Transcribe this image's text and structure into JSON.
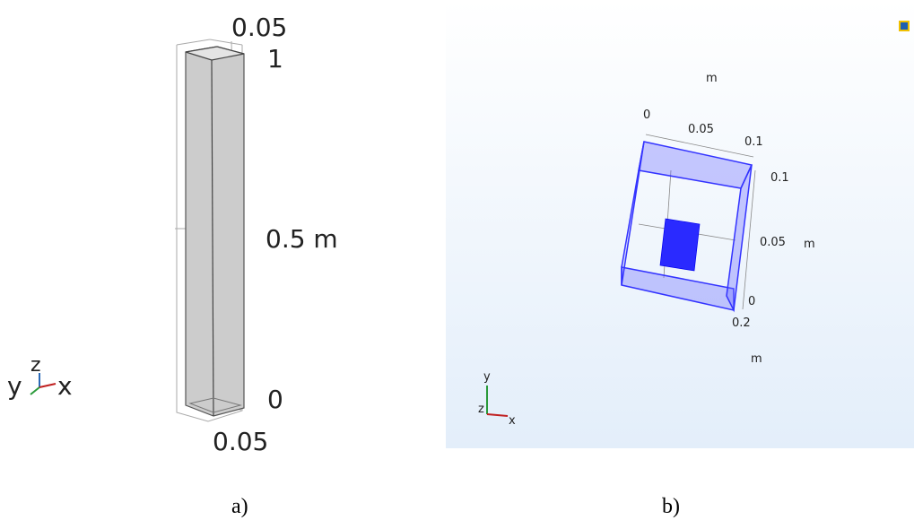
{
  "panels": [
    {
      "caption": "a)",
      "labels": [
        "0.05",
        "1",
        "0.5 m",
        "0",
        "0.05"
      ],
      "axes": [
        "y",
        "z",
        "x"
      ]
    },
    {
      "caption": "b)",
      "labels": [
        "m",
        "0",
        "0.05",
        "0.1",
        "0.1",
        "0.05",
        "m",
        "0",
        "0.2",
        "m"
      ],
      "axes": [
        "y",
        "z",
        "x"
      ]
    }
  ]
}
